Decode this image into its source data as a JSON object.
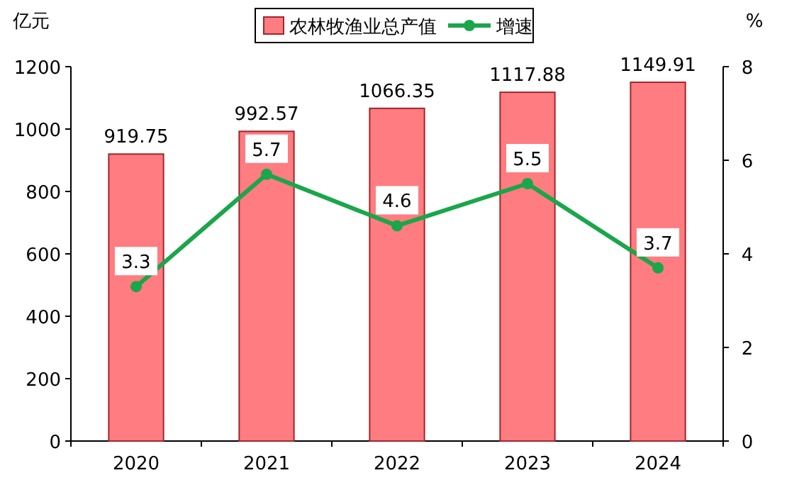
{
  "chart_data": {
    "type": "bar",
    "categories": [
      "2020",
      "2021",
      "2022",
      "2023",
      "2024"
    ],
    "series": [
      {
        "name": "农林牧渔业总产值",
        "color": "#ff7c80",
        "values": [
          919.75,
          992.57,
          1066.35,
          1117.88,
          1149.91
        ]
      },
      {
        "name": "增速",
        "type": "line",
        "axis": "y2",
        "color": "#1aa64a",
        "values": [
          3.3,
          5.7,
          4.6,
          5.5,
          3.7
        ]
      }
    ],
    "ylabel": "亿元",
    "y2label": "%",
    "ylim": [
      0,
      1200
    ],
    "yticks": [
      0,
      200,
      400,
      600,
      800,
      1000,
      1200
    ],
    "y2lim": [
      0,
      8
    ],
    "y2ticks": [
      0,
      2,
      4,
      6,
      8
    ],
    "marker": "circle",
    "data_labels": true,
    "legend": "top",
    "grid": false
  }
}
